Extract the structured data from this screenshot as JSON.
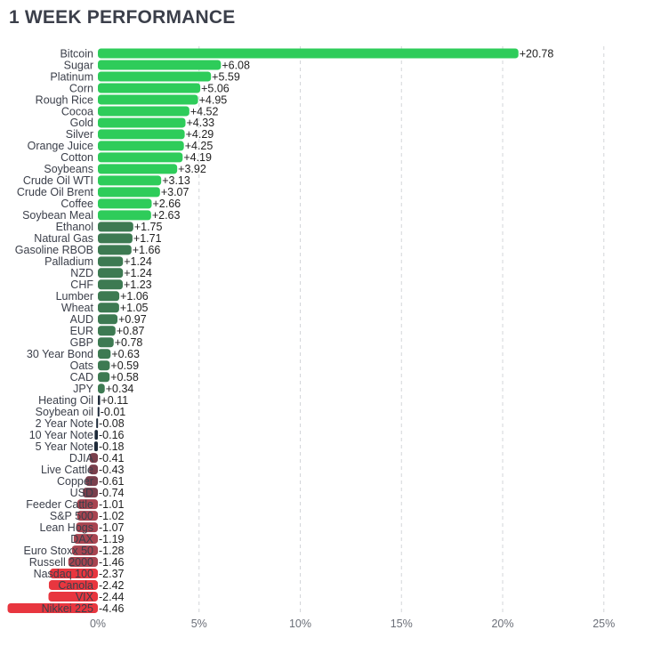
{
  "title": "1 WEEK PERFORMANCE",
  "chart_data": {
    "type": "bar",
    "orientation": "horizontal",
    "title": "1 WEEK PERFORMANCE",
    "xlim": [
      -5,
      25
    ],
    "x_ticks": [
      0,
      5,
      10,
      15,
      20,
      25
    ],
    "x_tick_labels": [
      "0%",
      "5%",
      "10%",
      "15%",
      "20%",
      "25%"
    ],
    "grid": true,
    "categories": [
      "Bitcoin",
      "Sugar",
      "Platinum",
      "Corn",
      "Rough Rice",
      "Cocoa",
      "Gold",
      "Silver",
      "Orange Juice",
      "Cotton",
      "Soybeans",
      "Crude Oil WTI",
      "Crude Oil Brent",
      "Coffee",
      "Soybean Meal",
      "Ethanol",
      "Natural Gas",
      "Gasoline RBOB",
      "Palladium",
      "NZD",
      "CHF",
      "Lumber",
      "Wheat",
      "AUD",
      "EUR",
      "GBP",
      "30 Year Bond",
      "Oats",
      "CAD",
      "JPY",
      "Heating Oil",
      "Soybean oil",
      "2 Year Note",
      "10 Year Note",
      "5 Year Note",
      "DJIA",
      "Live Cattle",
      "Copper",
      "USD",
      "Feeder Cattle",
      "S&P 500",
      "Lean Hogs",
      "DAX",
      "Euro Stoxx 50",
      "Russell 2000",
      "Nasdaq 100",
      "Canola",
      "VIX",
      "Nikkei 225"
    ],
    "values": [
      20.78,
      6.08,
      5.59,
      5.06,
      4.95,
      4.52,
      4.33,
      4.29,
      4.25,
      4.19,
      3.92,
      3.13,
      3.07,
      2.66,
      2.63,
      1.75,
      1.71,
      1.66,
      1.24,
      1.24,
      1.23,
      1.06,
      1.05,
      0.97,
      0.87,
      0.78,
      0.63,
      0.59,
      0.58,
      0.34,
      0.11,
      -0.01,
      -0.08,
      -0.16,
      -0.18,
      -0.41,
      -0.43,
      -0.61,
      -0.74,
      -1.01,
      -1.02,
      -1.07,
      -1.19,
      -1.28,
      -1.46,
      -2.37,
      -2.42,
      -2.44,
      -4.46
    ],
    "value_labels": [
      "+20.78",
      "+6.08",
      "+5.59",
      "+5.06",
      "+4.95",
      "+4.52",
      "+4.33",
      "+4.29",
      "+4.25",
      "+4.19",
      "+3.92",
      "+3.13",
      "+3.07",
      "+2.66",
      "+2.63",
      "+1.75",
      "+1.71",
      "+1.66",
      "+1.24",
      "+1.24",
      "+1.23",
      "+1.06",
      "+1.05",
      "+0.97",
      "+0.87",
      "+0.78",
      "+0.63",
      "+0.59",
      "+0.58",
      "+0.34",
      "+0.11",
      "-0.01",
      "-0.08",
      "-0.16",
      "-0.18",
      "-0.41",
      "-0.43",
      "-0.61",
      "-0.74",
      "-1.01",
      "-1.02",
      "-1.07",
      "-1.19",
      "-1.28",
      "-1.46",
      "-2.37",
      "-2.42",
      "-2.44",
      "-4.46"
    ],
    "colors": {
      "strong_positive": "#2ecc5a",
      "positive": "#3d7a52",
      "flat": "#1e2b3a",
      "negative": "#7a3f4c",
      "mid_negative": "#a84450",
      "strong_negative": "#e8363f"
    }
  }
}
